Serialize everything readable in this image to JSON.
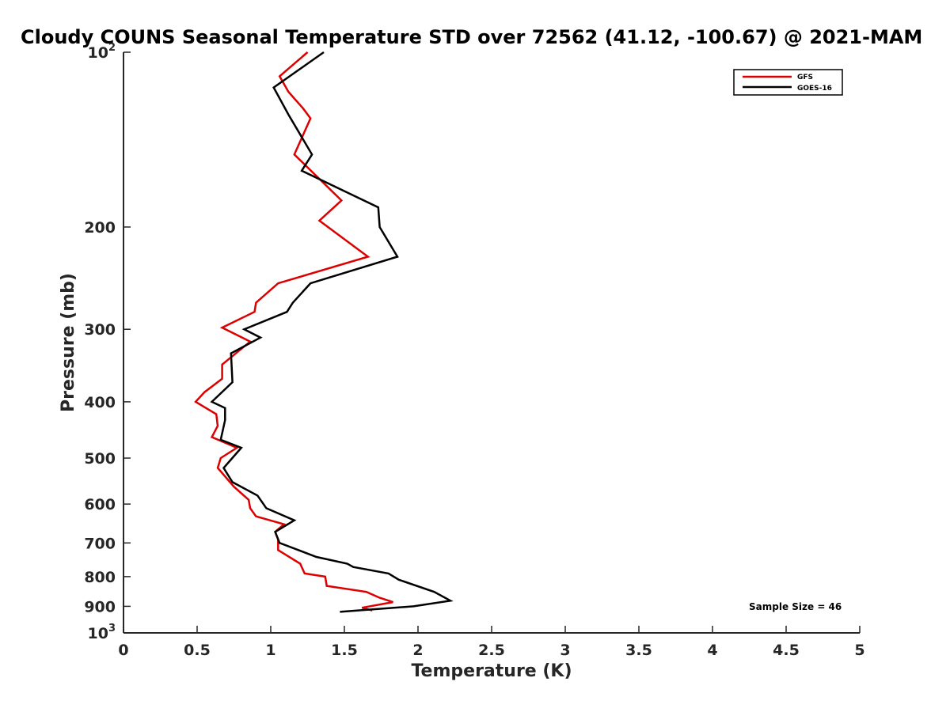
{
  "chart_data": {
    "type": "line",
    "title": "Cloudy COUNS Seasonal Temperature STD over 72562 (41.12, -100.67) @ 2021-MAM",
    "xlabel": "Temperature (K)",
    "ylabel": "Pressure (mb)",
    "xlim": [
      0,
      5
    ],
    "ylim": [
      100,
      1000
    ],
    "y_scale": "log",
    "y_reversed": true,
    "x_ticks": [
      0,
      0.5,
      1,
      1.5,
      2,
      2.5,
      3,
      3.5,
      4,
      4.5,
      5
    ],
    "x_tick_labels": [
      "0",
      "0.5",
      "1",
      "1.5",
      "2",
      "2.5",
      "3",
      "3.5",
      "4",
      "4.5",
      "5"
    ],
    "y_ticks": [
      100,
      200,
      300,
      400,
      500,
      600,
      700,
      800,
      900,
      1000
    ],
    "y_tick_labels": [
      {
        "base": "10",
        "exp": "2"
      },
      {
        "base": "200",
        "exp": ""
      },
      {
        "base": "300",
        "exp": ""
      },
      {
        "base": "400",
        "exp": ""
      },
      {
        "base": "500",
        "exp": ""
      },
      {
        "base": "600",
        "exp": ""
      },
      {
        "base": "700",
        "exp": ""
      },
      {
        "base": "800",
        "exp": ""
      },
      {
        "base": "900",
        "exp": ""
      },
      {
        "base": "10",
        "exp": "3"
      }
    ],
    "grid": false,
    "legend_position": "top-right",
    "annotation": "Sample Size = 46",
    "series": [
      {
        "name": "GFS",
        "color": "#dd0000",
        "x": [
          1.25,
          1.06,
          1.12,
          1.22,
          1.27,
          1.16,
          1.48,
          1.33,
          1.66,
          1.05,
          0.9,
          0.89,
          0.67,
          0.86,
          0.67,
          0.67,
          0.55,
          0.49,
          0.63,
          0.64,
          0.6,
          0.77,
          0.66,
          0.64,
          0.75,
          0.85,
          0.86,
          0.9,
          1.09,
          1.03,
          1.05,
          1.05,
          1.2,
          1.23,
          1.37,
          1.38,
          1.65,
          1.74,
          1.83,
          1.62,
          1.69
        ],
        "y": [
          100,
          110,
          117,
          125,
          130,
          150,
          180,
          195,
          225,
          250,
          270,
          280,
          298,
          315,
          345,
          365,
          385,
          400,
          420,
          440,
          460,
          480,
          500,
          520,
          560,
          590,
          610,
          630,
          650,
          670,
          690,
          720,
          760,
          790,
          800,
          830,
          850,
          870,
          885,
          905,
          915
        ]
      },
      {
        "name": "GOES-16",
        "color": "#000000",
        "x": [
          1.36,
          1.02,
          1.12,
          1.28,
          1.21,
          1.73,
          1.74,
          1.86,
          1.27,
          1.15,
          1.11,
          0.82,
          0.93,
          0.73,
          0.74,
          0.6,
          0.69,
          0.69,
          0.66,
          0.8,
          0.68,
          0.74,
          0.91,
          0.97,
          1.16,
          1.03,
          1.04,
          1.06,
          1.31,
          1.52,
          1.56,
          1.8,
          1.87,
          2.11,
          2.22,
          1.97,
          1.47
        ],
        "y": [
          100,
          115,
          128,
          150,
          160,
          185,
          200,
          225,
          250,
          270,
          280,
          300,
          310,
          330,
          370,
          400,
          410,
          430,
          465,
          480,
          520,
          550,
          580,
          610,
          640,
          670,
          680,
          700,
          740,
          760,
          770,
          790,
          810,
          850,
          880,
          900,
          920
        ]
      }
    ]
  }
}
